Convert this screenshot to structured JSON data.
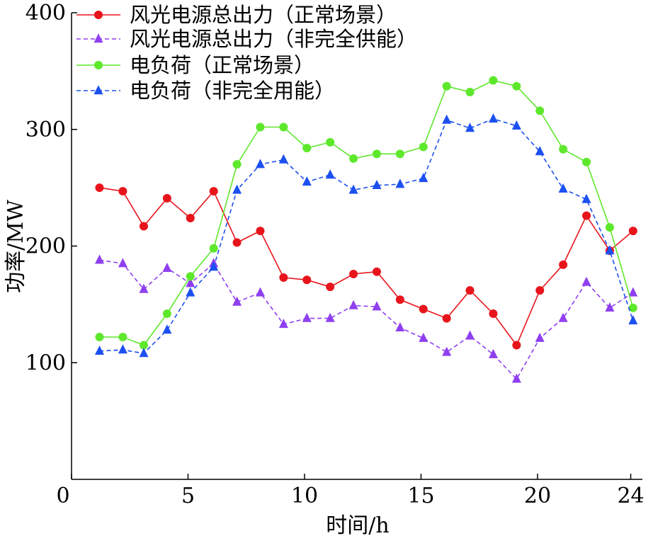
{
  "chart_data": {
    "type": "line",
    "xlabel": "时间/h",
    "ylabel": "功率/MW",
    "xlim": [
      0,
      24.5
    ],
    "ylim": [
      0,
      400
    ],
    "xticks": [
      0,
      5,
      10,
      15,
      20,
      24
    ],
    "yticks": [
      100,
      200,
      300,
      400
    ],
    "x": [
      1.2,
      2.2,
      3.1,
      4.1,
      5.1,
      6.1,
      7.1,
      8.1,
      9.1,
      10.1,
      11.1,
      12.1,
      13.1,
      14.1,
      15.1,
      16.1,
      17.1,
      18.1,
      19.1,
      20.1,
      21.1,
      22.1,
      23.1,
      24.1
    ],
    "series": [
      {
        "name": "风光电源总出力（正常场景）",
        "color": "#e8141c",
        "marker": "circle",
        "dashed": false,
        "values": [
          250,
          247,
          217,
          241,
          224,
          247,
          203,
          213,
          173,
          171,
          165,
          176,
          178,
          154,
          146,
          138,
          162,
          142,
          115,
          162,
          184,
          226,
          196,
          213
        ]
      },
      {
        "name": "风光电源总出力（非完全供能）",
        "color": "#8f3ff0",
        "marker": "triangle",
        "dashed": true,
        "values": [
          188,
          185,
          163,
          181,
          168,
          185,
          152,
          160,
          133,
          138,
          138,
          149,
          148,
          130,
          121,
          109,
          123,
          107,
          86,
          121,
          138,
          169,
          147,
          160
        ]
      },
      {
        "name": "电负荷（正常场景）",
        "color": "#5ee82c",
        "marker": "circle",
        "dashed": false,
        "values": [
          122,
          122,
          115,
          142,
          174,
          198,
          270,
          302,
          302,
          284,
          289,
          275,
          279,
          279,
          285,
          337,
          332,
          342,
          337,
          316,
          283,
          272,
          216,
          147
        ]
      },
      {
        "name": "电负荷（非完全用能）",
        "color": "#1c50f0",
        "marker": "triangle",
        "dashed": true,
        "values": [
          110,
          111,
          108,
          128,
          160,
          182,
          248,
          270,
          274,
          255,
          261,
          248,
          252,
          253,
          258,
          308,
          301,
          309,
          303,
          281,
          249,
          240,
          196,
          136
        ]
      }
    ]
  }
}
